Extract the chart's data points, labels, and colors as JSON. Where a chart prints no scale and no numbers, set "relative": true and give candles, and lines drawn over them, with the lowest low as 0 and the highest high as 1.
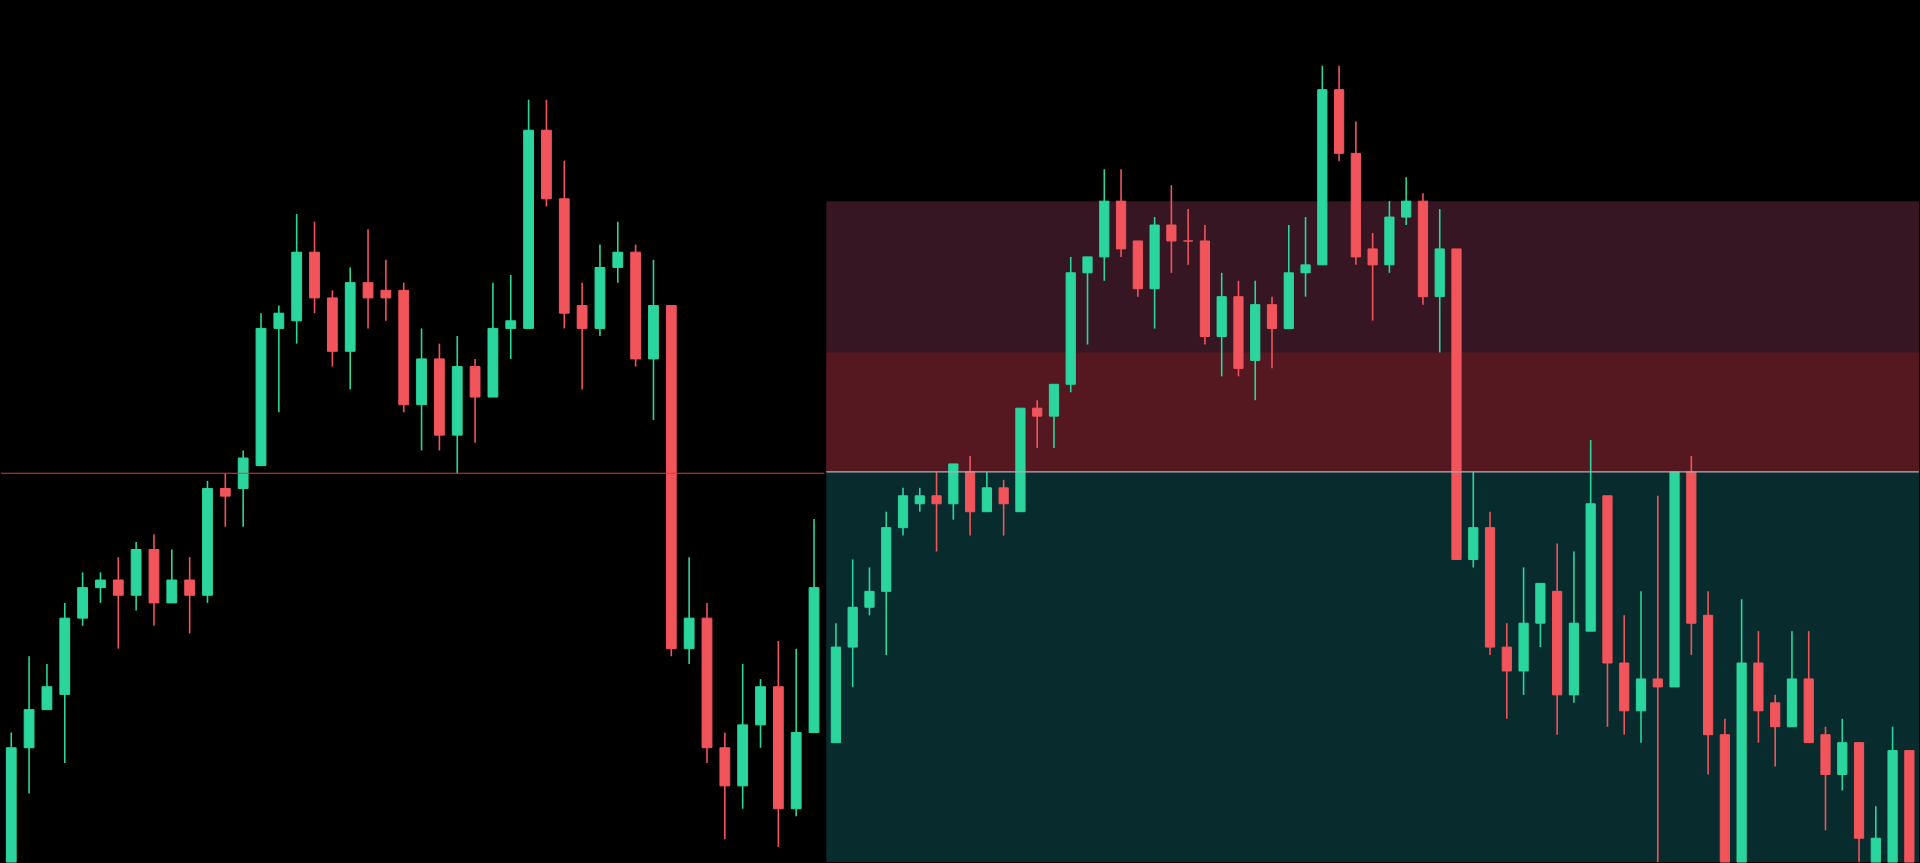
{
  "chart_data": [
    {
      "type": "candlestick",
      "relative": true,
      "categories": [
        null,
        null,
        null,
        null,
        null,
        null,
        null,
        null,
        null,
        null,
        null,
        null,
        null,
        null,
        null,
        null,
        null,
        null,
        null,
        null,
        null,
        null,
        null,
        null,
        null,
        null,
        null,
        null,
        null,
        null,
        null,
        null,
        null,
        null,
        null,
        null,
        null,
        null,
        null,
        null,
        null,
        null,
        null,
        null,
        null,
        null
      ],
      "ohlc": [
        [
          0,
          0.17,
          0,
          0.15
        ],
        [
          0.15,
          0.27,
          0.09,
          0.2
        ],
        [
          0.2,
          0.26,
          0.2,
          0.23
        ],
        [
          0.22,
          0.34,
          0.13,
          0.32
        ],
        [
          0.32,
          0.38,
          0.31,
          0.36
        ],
        [
          0.36,
          0.38,
          0.34,
          0.37
        ],
        [
          0.37,
          0.4,
          0.28,
          0.35
        ],
        [
          0.35,
          0.42,
          0.33,
          0.41
        ],
        [
          0.41,
          0.43,
          0.31,
          0.34
        ],
        [
          0.34,
          0.41,
          0.34,
          0.37
        ],
        [
          0.37,
          0.4,
          0.3,
          0.35
        ],
        [
          0.35,
          0.5,
          0.34,
          0.49
        ],
        [
          0.49,
          0.51,
          0.44,
          0.48
        ],
        [
          0.49,
          0.54,
          0.44,
          0.53
        ],
        [
          0.52,
          0.72,
          0.52,
          0.7
        ],
        [
          0.7,
          0.73,
          0.59,
          0.72
        ],
        [
          0.71,
          0.85,
          0.68,
          0.8
        ],
        [
          0.8,
          0.84,
          0.72,
          0.74
        ],
        [
          0.74,
          0.75,
          0.65,
          0.67
        ],
        [
          0.67,
          0.78,
          0.62,
          0.76
        ],
        [
          0.76,
          0.83,
          0.7,
          0.74
        ],
        [
          0.75,
          0.79,
          0.71,
          0.74
        ],
        [
          0.75,
          0.76,
          0.59,
          0.6
        ],
        [
          0.6,
          0.7,
          0.54,
          0.66
        ],
        [
          0.66,
          0.68,
          0.54,
          0.56
        ],
        [
          0.56,
          0.69,
          0.51,
          0.65
        ],
        [
          0.65,
          0.66,
          0.55,
          0.61
        ],
        [
          0.61,
          0.76,
          0.61,
          0.7
        ],
        [
          0.7,
          0.77,
          0.66,
          0.71
        ],
        [
          0.7,
          1,
          0.7,
          0.96
        ],
        [
          0.96,
          1,
          0.86,
          0.87
        ],
        [
          0.87,
          0.92,
          0.7,
          0.72
        ],
        [
          0.73,
          0.76,
          0.62,
          0.7
        ],
        [
          0.7,
          0.81,
          0.69,
          0.78
        ],
        [
          0.78,
          0.84,
          0.76,
          0.8
        ],
        [
          0.8,
          0.81,
          0.65,
          0.66
        ],
        [
          0.66,
          0.79,
          0.58,
          0.73
        ],
        [
          0.73,
          0.73,
          0.27,
          0.28
        ],
        [
          0.28,
          0.4,
          0.26,
          0.32
        ],
        [
          0.32,
          0.34,
          0.13,
          0.15
        ],
        [
          0.15,
          0.17,
          0.03,
          0.1
        ],
        [
          0.1,
          0.26,
          0.07,
          0.18
        ],
        [
          0.18,
          0.24,
          0.15,
          0.23
        ],
        [
          0.23,
          0.29,
          0.02,
          0.07
        ],
        [
          0.07,
          0.28,
          0.06,
          0.17
        ],
        [
          0.17,
          0.45,
          0.17,
          0.36
        ]
      ],
      "colors": [
        "#2bd69e",
        "#2bd69e",
        "#2bd69e",
        "#2bd69e",
        "#2bd69e",
        "#2bd69e",
        "#f2545b",
        "#2bd69e",
        "#f2545b",
        "#2bd69e",
        "#f2545b",
        "#2bd69e",
        "#f2545b",
        "#2bd69e",
        "#2bd69e",
        "#2bd69e",
        "#2bd69e",
        "#f2545b",
        "#f2545b",
        "#2bd69e",
        "#f2545b",
        "#f2545b",
        "#f2545b",
        "#2bd69e",
        "#f2545b",
        "#2bd69e",
        "#f2545b",
        "#2bd69e",
        "#2bd69e",
        "#2bd69e",
        "#f2545b",
        "#f2545b",
        "#f2545b",
        "#2bd69e",
        "#2bd69e",
        "#f2545b",
        "#2bd69e",
        "#f2545b",
        "#2bd69e",
        "#f2545b",
        "#f2545b",
        "#2bd69e",
        "#2bd69e",
        "#f2545b",
        "#2bd69e",
        "#2bd69e"
      ],
      "ref_lines": [
        {
          "axis": "y",
          "value": 0.51,
          "color": "#e0383b"
        }
      ]
    },
    {
      "type": "candlestick",
      "relative": true,
      "categories": [
        null,
        null,
        null,
        null,
        null,
        null,
        null,
        null,
        null,
        null,
        null,
        null,
        null,
        null,
        null,
        null,
        null,
        null,
        null,
        null,
        null,
        null,
        null,
        null,
        null,
        null,
        null,
        null,
        null,
        null,
        null,
        null,
        null,
        null,
        null,
        null,
        null,
        null,
        null,
        null,
        null,
        null,
        null,
        null,
        null,
        null,
        null,
        null,
        null,
        null,
        null,
        null,
        null,
        null,
        null,
        null,
        null,
        null,
        null,
        null,
        null,
        null,
        null,
        null,
        null
      ],
      "ohlc": [
        [
          0.15,
          0.3,
          0.15,
          0.27
        ],
        [
          0.27,
          0.38,
          0.22,
          0.32
        ],
        [
          0.32,
          0.37,
          0.31,
          0.34
        ],
        [
          0.34,
          0.44,
          0.26,
          0.42
        ],
        [
          0.42,
          0.47,
          0.41,
          0.46
        ],
        [
          0.45,
          0.47,
          0.44,
          0.46
        ],
        [
          0.46,
          0.49,
          0.39,
          0.45
        ],
        [
          0.45,
          0.5,
          0.43,
          0.5
        ],
        [
          0.49,
          0.51,
          0.41,
          0.44
        ],
        [
          0.44,
          0.49,
          0.44,
          0.47
        ],
        [
          0.47,
          0.48,
          0.41,
          0.45
        ],
        [
          0.44,
          0.57,
          0.44,
          0.57
        ],
        [
          0.57,
          0.58,
          0.52,
          0.56
        ],
        [
          0.56,
          0.6,
          0.52,
          0.6
        ],
        [
          0.6,
          0.76,
          0.59,
          0.74
        ],
        [
          0.74,
          0.76,
          0.65,
          0.76
        ],
        [
          0.76,
          0.87,
          0.73,
          0.83
        ],
        [
          0.83,
          0.87,
          0.76,
          0.77
        ],
        [
          0.78,
          0.78,
          0.71,
          0.72
        ],
        [
          0.72,
          0.81,
          0.67,
          0.8
        ],
        [
          0.8,
          0.85,
          0.74,
          0.78
        ],
        [
          0.78,
          0.82,
          0.75,
          0.78
        ],
        [
          0.78,
          0.8,
          0.65,
          0.66
        ],
        [
          0.66,
          0.74,
          0.61,
          0.71
        ],
        [
          0.71,
          0.73,
          0.61,
          0.62
        ],
        [
          0.63,
          0.73,
          0.58,
          0.7
        ],
        [
          0.7,
          0.71,
          0.62,
          0.67
        ],
        [
          0.67,
          0.8,
          0.67,
          0.74
        ],
        [
          0.74,
          0.81,
          0.71,
          0.75
        ],
        [
          0.75,
          1,
          0.75,
          0.97
        ],
        [
          0.97,
          1,
          0.88,
          0.89
        ],
        [
          0.89,
          0.93,
          0.75,
          0.76
        ],
        [
          0.77,
          0.79,
          0.68,
          0.75
        ],
        [
          0.75,
          0.83,
          0.74,
          0.81
        ],
        [
          0.81,
          0.86,
          0.8,
          0.83
        ],
        [
          0.83,
          0.84,
          0.7,
          0.71
        ],
        [
          0.71,
          0.82,
          0.64,
          0.77
        ],
        [
          0.77,
          0.77,
          0.38,
          0.38
        ],
        [
          0.38,
          0.49,
          0.37,
          0.42
        ],
        [
          0.42,
          0.44,
          0.26,
          0.27
        ],
        [
          0.27,
          0.3,
          0.18,
          0.24
        ],
        [
          0.24,
          0.37,
          0.21,
          0.3
        ],
        [
          0.3,
          0.35,
          0.27,
          0.35
        ],
        [
          0.34,
          0.4,
          0.16,
          0.21
        ],
        [
          0.21,
          0.39,
          0.2,
          0.3
        ],
        [
          0.29,
          0.53,
          0.29,
          0.45
        ],
        [
          0.46,
          0.46,
          0.17,
          0.25
        ],
        [
          0.25,
          0.31,
          0.16,
          0.19
        ],
        [
          0.19,
          0.34,
          0.15,
          0.23
        ],
        [
          0.23,
          0.46,
          0,
          0.22
        ],
        [
          0.22,
          0.49,
          0.22,
          0.49
        ],
        [
          0.49,
          0.51,
          0.26,
          0.3
        ],
        [
          0.31,
          0.34,
          0.11,
          0.16
        ],
        [
          0.16,
          0.18,
          0,
          0
        ],
        [
          0,
          0.33,
          0,
          0.25
        ],
        [
          0.25,
          0.29,
          0.15,
          0.19
        ],
        [
          0.2,
          0.21,
          0.12,
          0.17
        ],
        [
          0.17,
          0.29,
          0.17,
          0.23
        ],
        [
          0.23,
          0.29,
          0.15,
          0.15
        ],
        [
          0.16,
          0.17,
          0.04,
          0.11
        ],
        [
          0.11,
          0.18,
          0.09,
          0.15
        ],
        [
          0.15,
          0.15,
          0,
          0.03
        ],
        [
          0,
          0.07,
          0,
          0.03
        ],
        [
          0,
          0.17,
          0,
          0.14
        ],
        [
          0.14,
          0.14,
          0,
          0
        ]
      ],
      "colors": [
        "#2bd69e",
        "#2bd69e",
        "#2bd69e",
        "#2bd69e",
        "#2bd69e",
        "#2bd69e",
        "#f2545b",
        "#2bd69e",
        "#f2545b",
        "#2bd69e",
        "#f2545b",
        "#2bd69e",
        "#f2545b",
        "#2bd69e",
        "#2bd69e",
        "#2bd69e",
        "#2bd69e",
        "#f2545b",
        "#f2545b",
        "#2bd69e",
        "#f2545b",
        "#f2545b",
        "#f2545b",
        "#2bd69e",
        "#f2545b",
        "#2bd69e",
        "#f2545b",
        "#2bd69e",
        "#2bd69e",
        "#2bd69e",
        "#f2545b",
        "#f2545b",
        "#f2545b",
        "#2bd69e",
        "#2bd69e",
        "#f2545b",
        "#2bd69e",
        "#f2545b",
        "#2bd69e",
        "#f2545b",
        "#f2545b",
        "#2bd69e",
        "#2bd69e",
        "#f2545b",
        "#2bd69e",
        "#2bd69e",
        "#f2545b",
        "#f2545b",
        "#2bd69e",
        "#f2545b",
        "#2bd69e",
        "#f2545b",
        "#f2545b",
        "#f2545b",
        "#2bd69e",
        "#f2545b",
        "#f2545b",
        "#2bd69e",
        "#f2545b",
        "#f2545b",
        "#2bd69e",
        "#f2545b",
        "#2bd69e",
        "#2bd69e",
        "#f2545b"
      ],
      "bands": [
        {
          "axis": "y",
          "from": 0,
          "to": 0.49,
          "color": "#0e4a4b"
        },
        {
          "axis": "y",
          "from": 0.49,
          "to": 0.83,
          "color": "#5a2438"
        },
        {
          "axis": "y",
          "from": 0.49,
          "to": 0.64,
          "color": "#6a1a22"
        }
      ],
      "ref_lines": [
        {
          "axis": "y",
          "value": 0.49,
          "color": "#b0b0b0"
        }
      ]
    }
  ]
}
